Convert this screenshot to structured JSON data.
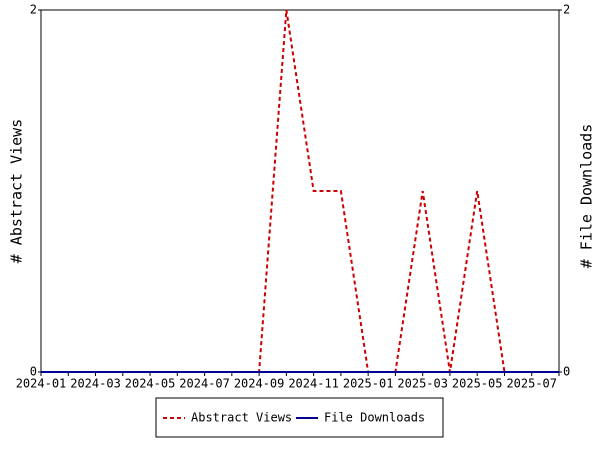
{
  "chart_data": {
    "type": "line",
    "categories": [
      "2024-01",
      null,
      "2024-03",
      null,
      "2024-05",
      null,
      "2024-07",
      null,
      "2024-09",
      null,
      "2024-11",
      null,
      "2025-01",
      null,
      "2025-03",
      null,
      "2025-05",
      null,
      "2025-07",
      null
    ],
    "series": [
      {
        "name": "Abstract Views",
        "color": "#cc0000",
        "dashed": true,
        "values": [
          0,
          0,
          0,
          0,
          0,
          0,
          0,
          0,
          0,
          2,
          1,
          1,
          0,
          0,
          1,
          0,
          1,
          0,
          0,
          0
        ]
      },
      {
        "name": "File Downloads",
        "color": "#000099",
        "axis": "y2",
        "values": [
          0,
          0,
          0,
          0,
          0,
          0,
          0,
          0,
          0,
          0,
          0,
          0,
          0,
          0,
          0,
          0,
          0,
          0,
          0,
          0
        ]
      }
    ],
    "ylabel": "# Abstract Views",
    "y2label": "# File Downloads",
    "ylim": [
      0,
      2
    ],
    "yticks": [
      0,
      2
    ],
    "y2lim": [
      0,
      2
    ],
    "y2ticks": [
      0,
      2
    ]
  }
}
